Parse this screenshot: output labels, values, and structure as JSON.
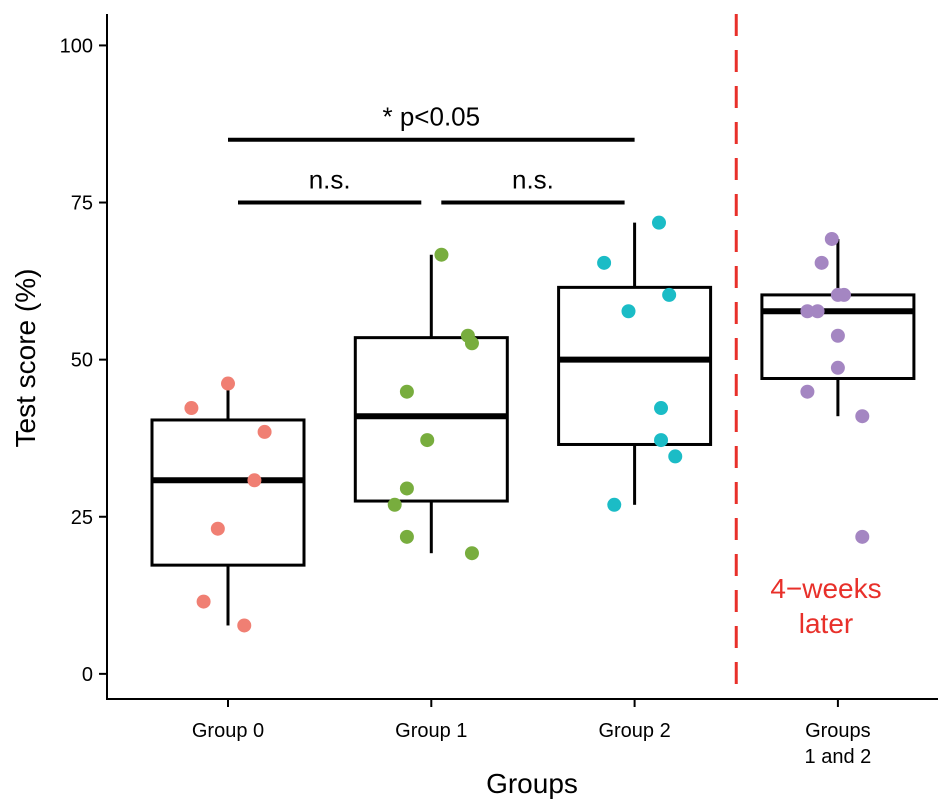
{
  "chart_data": {
    "type": "boxplot",
    "xlabel": "Groups",
    "ylabel": "Test score (%)",
    "ylim": [
      -4,
      105
    ],
    "yticks": [
      0,
      25,
      50,
      75,
      100
    ],
    "grid": false,
    "categories": [
      {
        "label_lines": [
          "Group 0"
        ],
        "color": "#F07F73",
        "box": {
          "q1": 17.3,
          "median": 30.8,
          "q3": 40.4,
          "whisker_low": 7.7,
          "whisker_high": 46.2
        },
        "points": [
          46.2,
          42.3,
          38.5,
          30.8,
          23.1,
          11.5,
          7.7
        ],
        "jitter": [
          0.0,
          -0.18,
          0.18,
          0.13,
          -0.05,
          -0.12,
          0.08
        ]
      },
      {
        "label_lines": [
          "Group 1"
        ],
        "color": "#78AD3E",
        "box": {
          "q1": 27.5,
          "median": 41.0,
          "q3": 53.5,
          "whisker_low": 19.2,
          "whisker_high": 66.7
        },
        "points": [
          66.7,
          53.8,
          52.6,
          44.9,
          37.2,
          29.5,
          26.9,
          21.8,
          19.2
        ],
        "jitter": [
          0.05,
          0.18,
          0.2,
          -0.12,
          -0.02,
          -0.12,
          -0.18,
          -0.12,
          0.2
        ]
      },
      {
        "label_lines": [
          "Group 2"
        ],
        "color": "#1BBCC6",
        "box": {
          "q1": 36.5,
          "median": 50.0,
          "q3": 61.5,
          "whisker_low": 26.9,
          "whisker_high": 71.8
        },
        "points": [
          71.8,
          65.4,
          60.3,
          57.7,
          42.3,
          37.2,
          34.6,
          26.9
        ],
        "jitter": [
          0.12,
          -0.15,
          0.17,
          -0.03,
          0.13,
          0.13,
          0.2,
          -0.1
        ]
      },
      {
        "label_lines": [
          "Groups",
          "1 and 2"
        ],
        "color": "#A486C2",
        "box": {
          "q1": 47.0,
          "median": 57.7,
          "q3": 60.3,
          "whisker_low": 41.0,
          "whisker_high": 69.2
        },
        "points": [
          69.2,
          65.4,
          60.3,
          60.3,
          57.7,
          57.7,
          53.8,
          48.7,
          44.9,
          41.0,
          21.8
        ],
        "jitter": [
          -0.03,
          -0.08,
          0.0,
          0.03,
          -0.15,
          -0.1,
          0.0,
          0.0,
          -0.15,
          0.12,
          0.12
        ]
      }
    ],
    "comparisons": [
      {
        "from": 0,
        "to": 2,
        "y": 85,
        "label": "* p<0.05"
      },
      {
        "from": 0,
        "to": 1,
        "y": 75,
        "label": "n.s."
      },
      {
        "from": 1,
        "to": 2,
        "y": 75,
        "label": "n.s."
      }
    ],
    "divider": {
      "after_category": 2,
      "label_lines": [
        "4−weeks",
        "later"
      ],
      "color": "#E8302A"
    }
  }
}
